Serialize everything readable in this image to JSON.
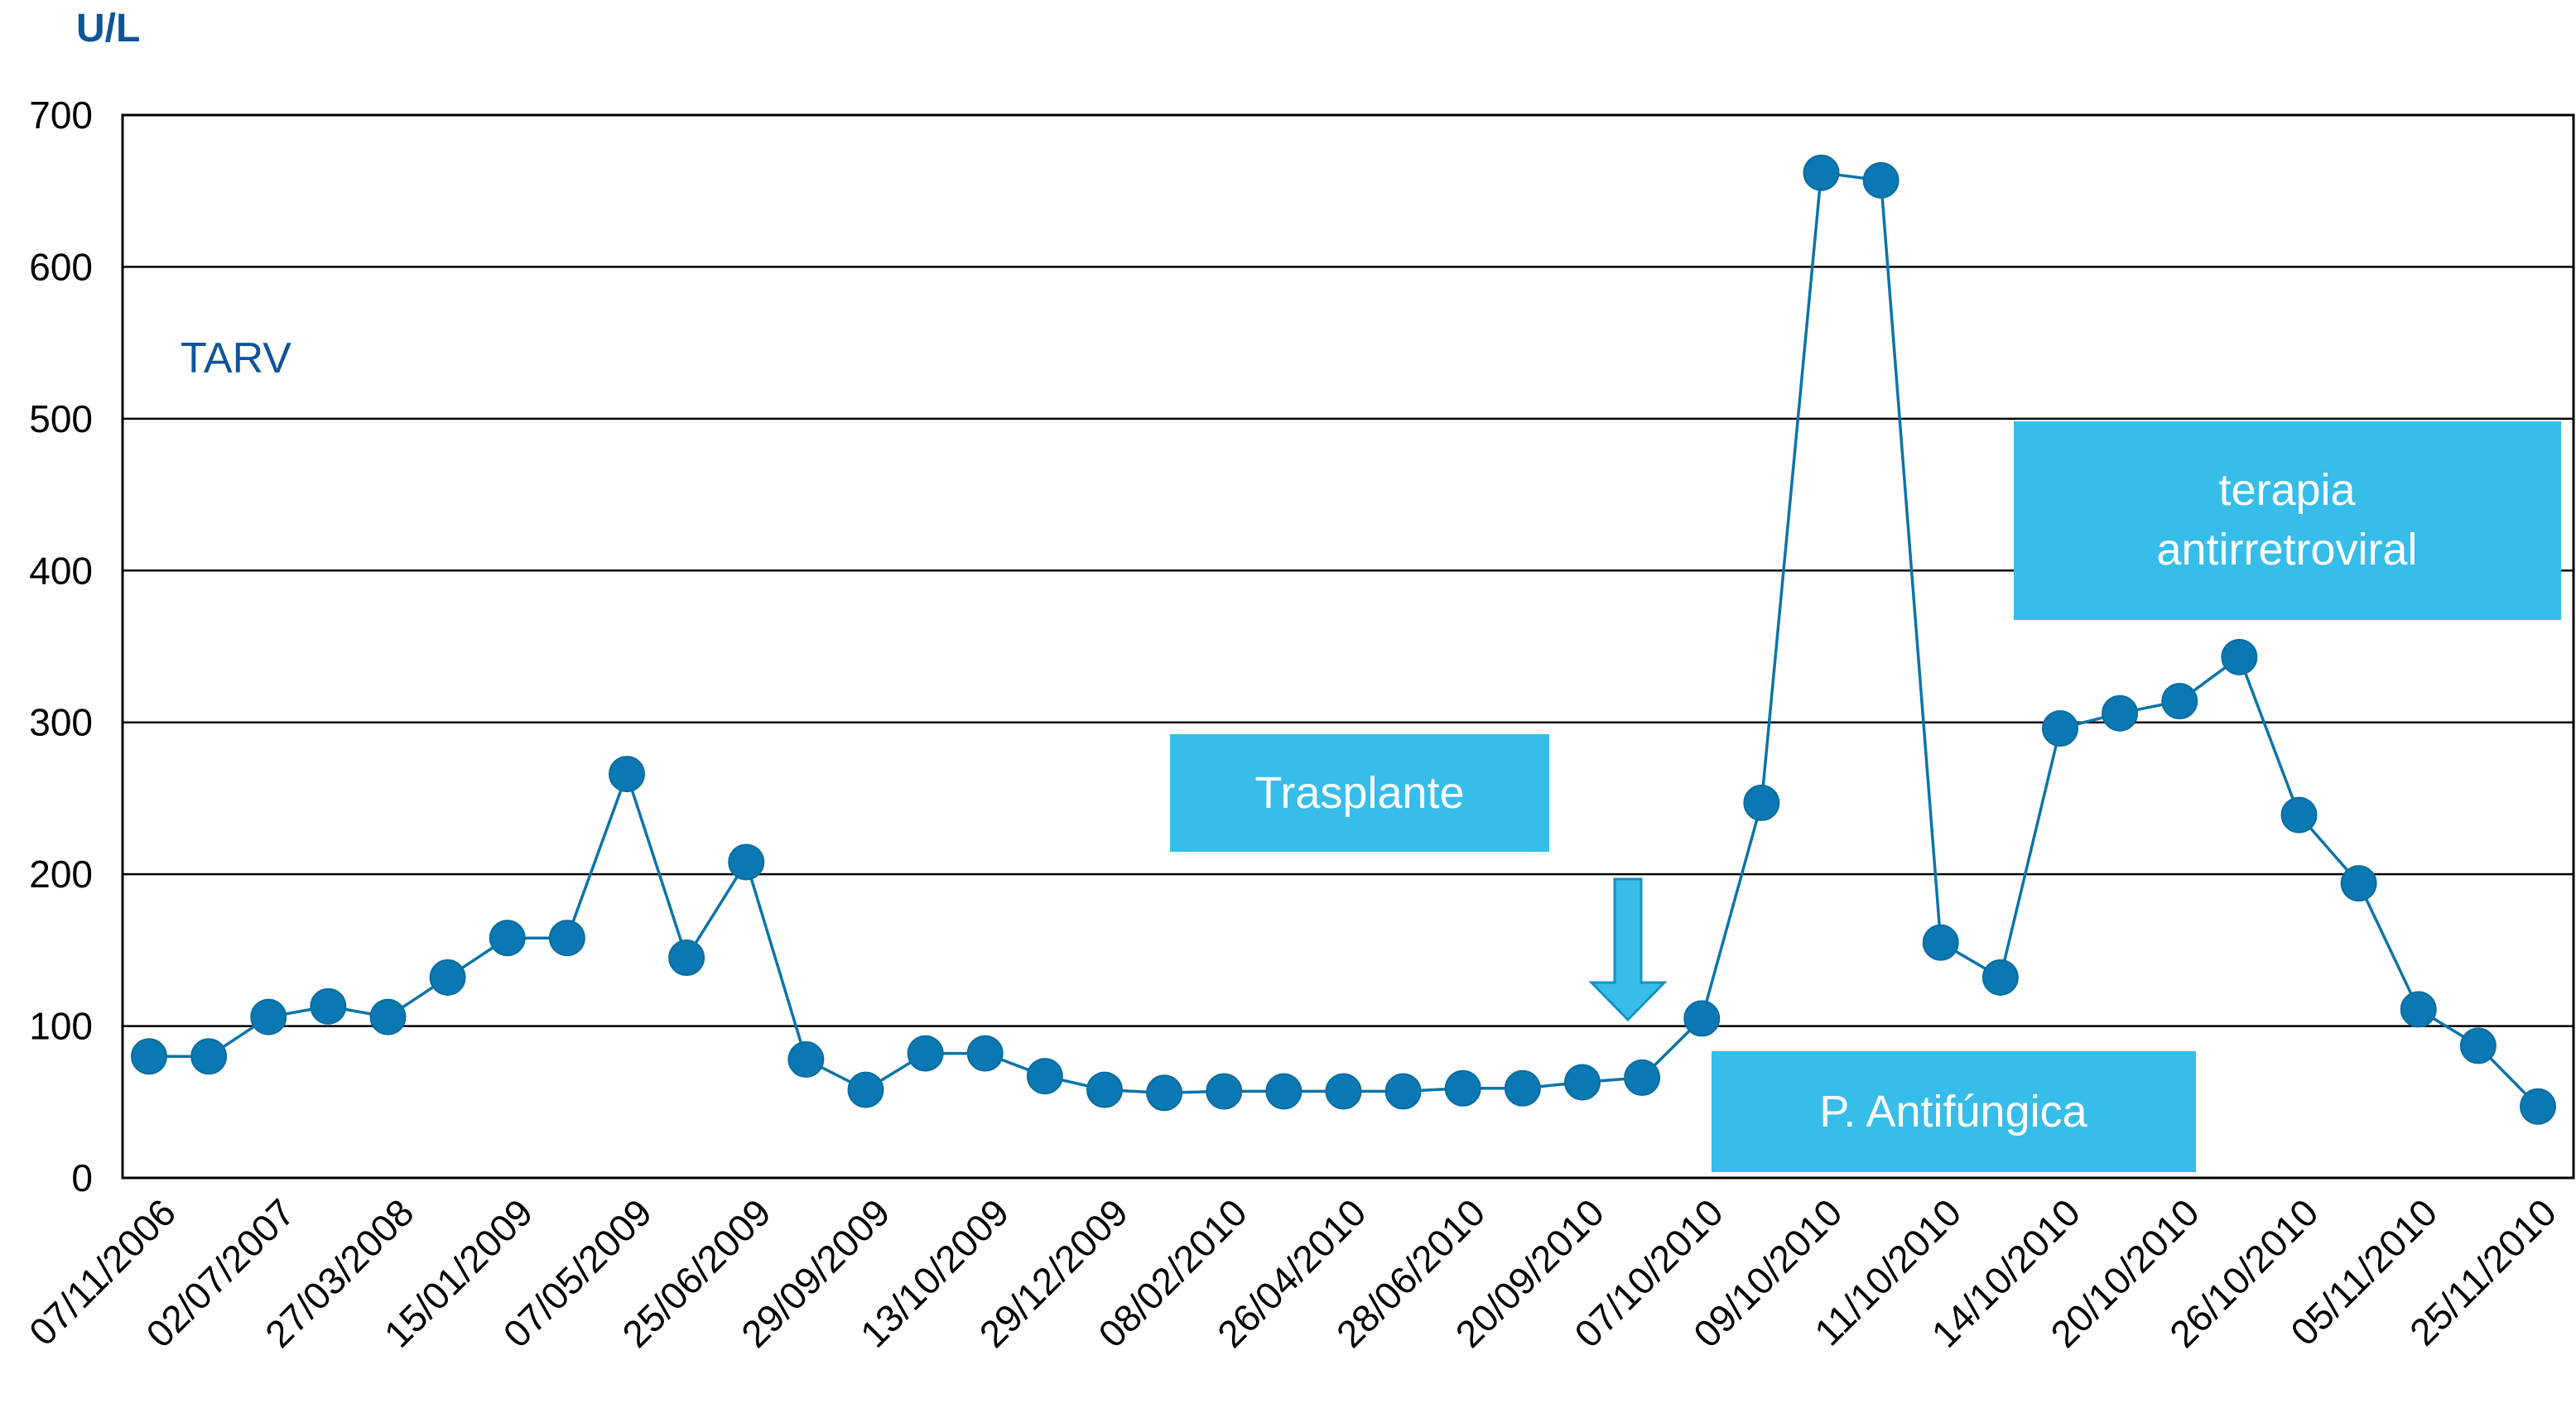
{
  "chart_data": {
    "type": "line",
    "ylabel": "U/L",
    "ylim": [
      0,
      700
    ],
    "yticks": [
      0,
      100,
      200,
      300,
      400,
      500,
      600,
      700
    ],
    "grid": true,
    "x_tick_labels": [
      "07/11/2006",
      "02/07/2007",
      "27/03/2008",
      "15/01/2009",
      "07/05/2009",
      "25/06/2009",
      "29/09/2009",
      "13/10/2009",
      "29/12/2009",
      "08/02/2010",
      "26/04/2010",
      "28/06/2010",
      "20/09/2010",
      "07/10/2010",
      "09/10/2010",
      "11/10/2010",
      "14/10/2010",
      "20/10/2010",
      "26/10/2010",
      "05/11/2010",
      "25/11/2010"
    ],
    "values": [
      80,
      80,
      106,
      113,
      106,
      132,
      158,
      158,
      266,
      145,
      208,
      78,
      58,
      82,
      82,
      67,
      58,
      56,
      57,
      57,
      57,
      57,
      59,
      59,
      63,
      66,
      105,
      247,
      662,
      657,
      155,
      132,
      296,
      306,
      314,
      343,
      239,
      194,
      111,
      87,
      47
    ],
    "annotations": {
      "tarv": "TARV",
      "trasplante": "Trasplante",
      "antifungica": "P. Antifúngica",
      "terapia_line1": "terapia",
      "terapia_line2": "antirretroviral"
    },
    "colors": {
      "series": "#0b74a8",
      "marker": "#0a79b3",
      "label_blue": "#0e5499",
      "annotation_box": "#37bde9",
      "arrow": "#37bde9"
    }
  }
}
